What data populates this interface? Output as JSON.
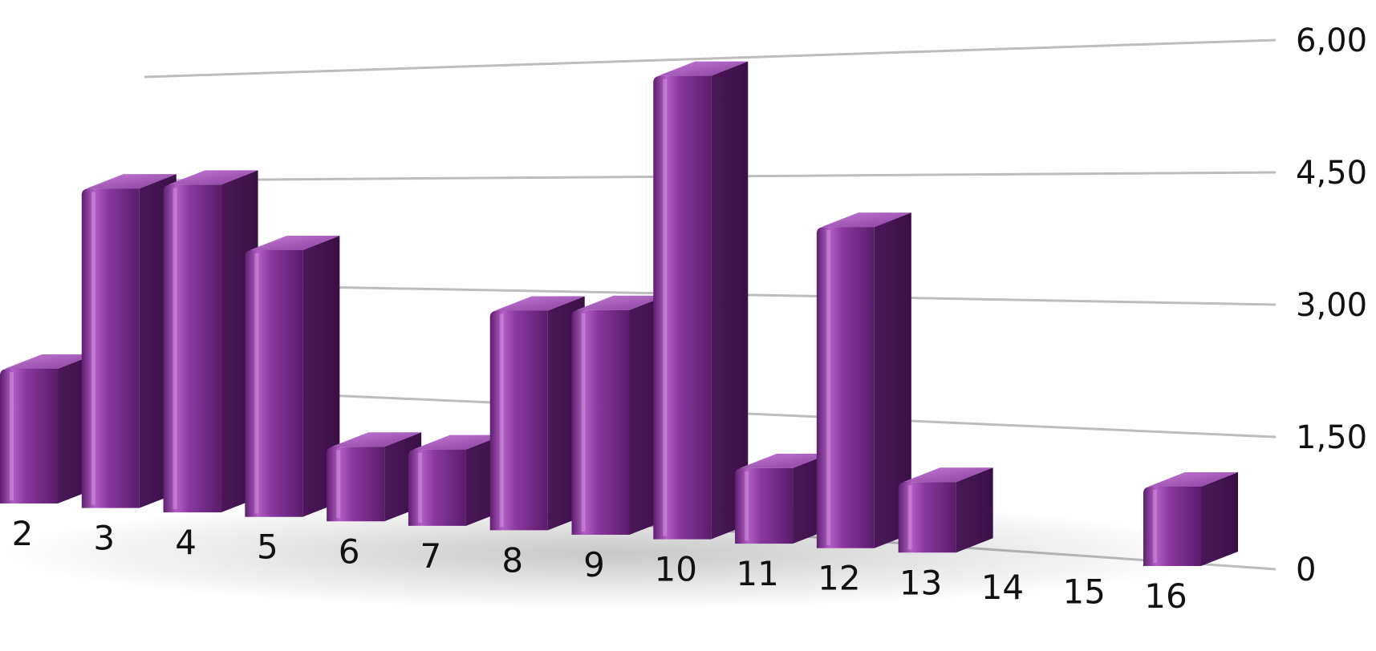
{
  "chart_data": {
    "type": "bar",
    "categories": [
      "2",
      "3",
      "4",
      "5",
      "6",
      "7",
      "8",
      "9",
      "10",
      "11",
      "12",
      "13",
      "14",
      "15",
      "16"
    ],
    "values": [
      2.1,
      4.85,
      4.85,
      3.85,
      1.05,
      1.05,
      2.95,
      2.95,
      5.95,
      0.95,
      3.95,
      0.85,
      0,
      0,
      0.9
    ],
    "y_tick_labels": [
      "0",
      "1,50",
      "3,00",
      "4,50",
      "6,00"
    ],
    "y_tick_values": [
      0,
      1.5,
      3,
      4.5,
      6
    ],
    "ylim": [
      0,
      6
    ],
    "xlabel": "",
    "ylabel": "",
    "title": "",
    "grid": true,
    "legend": "none",
    "style": "3d-cylinder-bars",
    "bar_color": "#7a2c8c",
    "bar_highlight": "#c77ad6",
    "bar_dark": "#4a1a56"
  }
}
